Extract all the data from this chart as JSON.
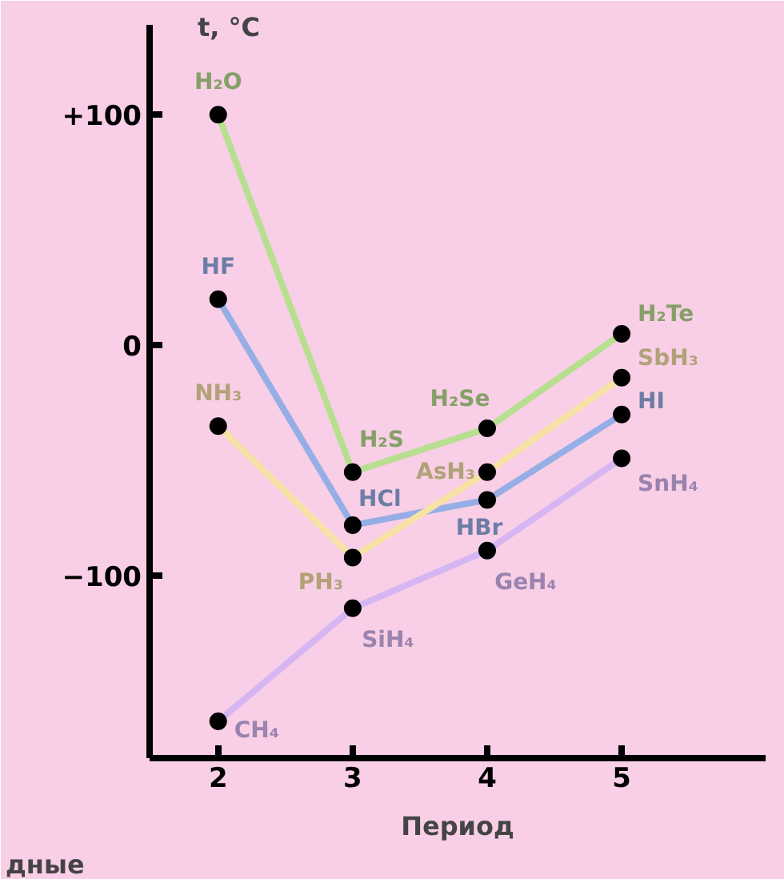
{
  "chart_data": {
    "type": "line",
    "xlabel": "Период",
    "ylabel": "t, °C",
    "x": [
      2,
      3,
      4,
      5
    ],
    "xlim": [
      1.49,
      6.07
    ],
    "xticks": [
      2,
      3,
      4,
      5
    ],
    "ylim": [
      -179,
      139
    ],
    "yticks": [
      {
        "value": 100,
        "label": "+100"
      },
      0,
      -100
    ],
    "marker": "circle",
    "grid": false,
    "series": [
      {
        "color": "#b8df90",
        "values": [
          100,
          -55,
          -36,
          5
        ]
      },
      {
        "color": "#96aee6",
        "values": [
          20,
          -78,
          -67,
          -30
        ]
      },
      {
        "color": "#f7e2a6",
        "values": [
          -35,
          -92,
          -55,
          -14
        ]
      },
      {
        "color": "#d6b6f2",
        "values": [
          -163,
          -114,
          -89,
          -49
        ]
      }
    ],
    "annotations": [
      {
        "text": "H₂O",
        "x": 2,
        "y": 100
      },
      {
        "text": "H₂S",
        "x": 3,
        "y": -55
      },
      {
        "text": "H₂Se",
        "x": 4,
        "y": -36
      },
      {
        "text": "H₂Te",
        "x": 5,
        "y": 5
      },
      {
        "text": "HF",
        "x": 2,
        "y": 20
      },
      {
        "text": "HCl",
        "x": 3,
        "y": -78
      },
      {
        "text": "HBr",
        "x": 4,
        "y": -67
      },
      {
        "text": "HI",
        "x": 5,
        "y": -30
      },
      {
        "text": "NH₃",
        "x": 2,
        "y": -35
      },
      {
        "text": "PH₃",
        "x": 3,
        "y": -92
      },
      {
        "text": "AsH₃",
        "x": 4,
        "y": -55
      },
      {
        "text": "SbH₃",
        "x": 5,
        "y": -14
      },
      {
        "text": "CH₄",
        "x": 2,
        "y": -163
      },
      {
        "text": "SiH₄",
        "x": 3,
        "y": -114
      },
      {
        "text": "GeH₄",
        "x": 4,
        "y": -89
      },
      {
        "text": "SnH₄",
        "x": 5,
        "y": -49
      },
      "дные"
    ]
  }
}
